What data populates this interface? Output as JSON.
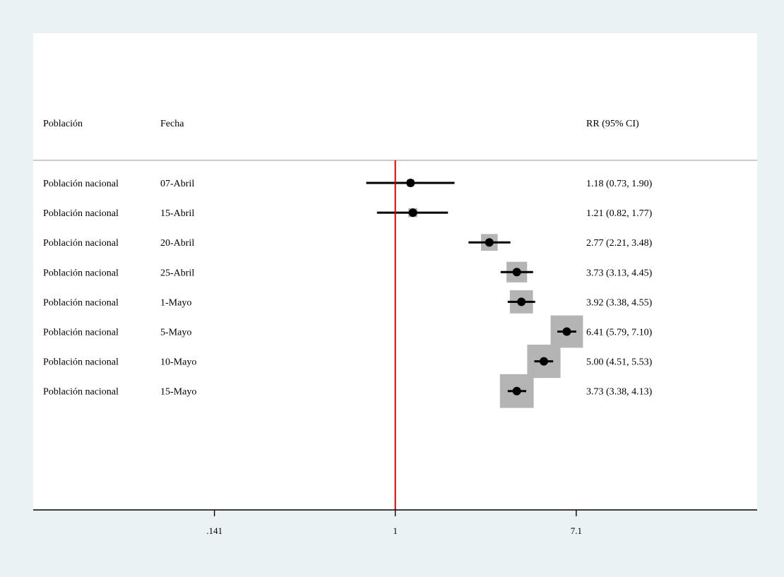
{
  "chart_data": {
    "type": "forest",
    "columns": {
      "population_header": "Población",
      "date_header": "Fecha",
      "estimate_header": "RR (95% CI)"
    },
    "x_scale": "log",
    "x_ticks": [
      {
        "value": 0.141,
        "label": ".141"
      },
      {
        "value": 1,
        "label": "1"
      },
      {
        "value": 7.1,
        "label": "7.1"
      }
    ],
    "xlim": [
      0.0198,
      50.4
    ],
    "reference_line": {
      "value": 1,
      "color": "#cc0000"
    },
    "colors": {
      "page_background": "#eaf2f3",
      "plot_background": "#ffffff",
      "weight_box": "#b4b4b4",
      "marker": "#000000",
      "reference_line": "#cc0000",
      "separator": "#aaaaaa"
    },
    "rows": [
      {
        "population": "Población nacional",
        "date": "07-Abril",
        "rr": 1.18,
        "lo": 0.73,
        "hi": 1.9,
        "label": "1.18 (0.73, 1.90)",
        "weight": 0.9
      },
      {
        "population": "Población nacional",
        "date": "15-Abril",
        "rr": 1.21,
        "lo": 0.82,
        "hi": 1.77,
        "label": "1.21 (0.82, 1.77)",
        "weight": 1.4
      },
      {
        "population": "Población nacional",
        "date": "20-Abril",
        "rr": 2.77,
        "lo": 2.21,
        "hi": 3.48,
        "label": "2.77 (2.21, 3.48)",
        "weight": 4.8
      },
      {
        "population": "Población nacional",
        "date": "25-Abril",
        "rr": 3.73,
        "lo": 3.13,
        "hi": 4.45,
        "label": "3.73 (3.13, 4.45)",
        "weight": 7.3
      },
      {
        "population": "Población nacional",
        "date": "1-Mayo",
        "rr": 3.92,
        "lo": 3.38,
        "hi": 4.55,
        "label": "3.92 (3.38, 4.55)",
        "weight": 9.2
      },
      {
        "population": "Población nacional",
        "date": "5-Mayo",
        "rr": 6.41,
        "lo": 5.79,
        "hi": 7.1,
        "label": "6.41 (5.79, 7.10)",
        "weight": 18.0
      },
      {
        "population": "Población nacional",
        "date": "10-Mayo",
        "rr": 5.0,
        "lo": 4.51,
        "hi": 5.53,
        "label": "5.00 (4.51, 5.53)",
        "weight": 19.1
      },
      {
        "population": "Población nacional",
        "date": "15-Mayo",
        "rr": 3.73,
        "lo": 3.38,
        "hi": 4.13,
        "label": "3.73 (3.38, 4.13)",
        "weight": 19.6
      }
    ]
  }
}
